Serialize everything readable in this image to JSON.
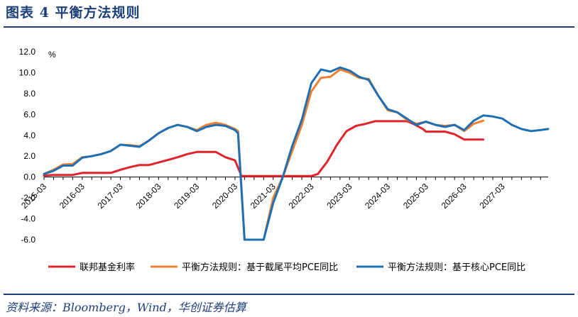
{
  "header": {
    "title": "图表 4 平衡方法规则"
  },
  "footer": {
    "source": "资料来源：Bloomberg，Wind，华创证券估算"
  },
  "chart_data": {
    "type": "line",
    "ylabel": "%",
    "ylim": [
      -6.0,
      12.0
    ],
    "yticks": [
      "12.0",
      "10.0",
      "8.0",
      "6.0",
      "4.0",
      "2.0",
      "0.0",
      "-2.0",
      "-4.0",
      "-6.0"
    ],
    "xlim": [
      2015.0,
      2028.2
    ],
    "xticks": [
      "2015-03",
      "2016-03",
      "2017-03",
      "2018-03",
      "2019-03",
      "2020-03",
      "2021-03",
      "2022-03",
      "2023-03",
      "2024-03",
      "2025-03",
      "2026-03",
      "2027-03"
    ],
    "colors": {
      "fed": "#e0242b",
      "trimmed": "#ee8030",
      "core": "#1f6fb5",
      "axis": "#000000"
    },
    "series": [
      {
        "name": "联邦基金利率",
        "color": "#e0242b",
        "points": [
          [
            2015.0,
            0.15
          ],
          [
            2015.25,
            0.2
          ],
          [
            2015.5,
            0.2
          ],
          [
            2015.75,
            0.2
          ],
          [
            2016.0,
            0.4
          ],
          [
            2016.25,
            0.4
          ],
          [
            2016.5,
            0.4
          ],
          [
            2016.75,
            0.4
          ],
          [
            2017.0,
            0.7
          ],
          [
            2017.25,
            0.95
          ],
          [
            2017.5,
            1.15
          ],
          [
            2017.75,
            1.15
          ],
          [
            2018.0,
            1.4
          ],
          [
            2018.25,
            1.65
          ],
          [
            2018.5,
            1.9
          ],
          [
            2018.75,
            2.2
          ],
          [
            2019.0,
            2.4
          ],
          [
            2019.25,
            2.4
          ],
          [
            2019.5,
            2.4
          ],
          [
            2019.75,
            1.9
          ],
          [
            2020.0,
            1.6
          ],
          [
            2020.17,
            0.1
          ],
          [
            2020.5,
            0.1
          ],
          [
            2021.0,
            0.1
          ],
          [
            2021.5,
            0.1
          ],
          [
            2022.0,
            0.1
          ],
          [
            2022.17,
            0.3
          ],
          [
            2022.42,
            1.5
          ],
          [
            2022.67,
            3.1
          ],
          [
            2022.92,
            4.4
          ],
          [
            2023.17,
            4.9
          ],
          [
            2023.42,
            5.1
          ],
          [
            2023.67,
            5.35
          ],
          [
            2024.0,
            5.35
          ],
          [
            2024.5,
            5.35
          ],
          [
            2024.67,
            5.1
          ],
          [
            2024.92,
            4.6
          ],
          [
            2025.0,
            4.35
          ],
          [
            2025.5,
            4.35
          ],
          [
            2025.75,
            4.1
          ],
          [
            2026.0,
            3.6
          ],
          [
            2026.5,
            3.6
          ]
        ]
      },
      {
        "name": "平衡方法规则：基于截尾平均PCE同比",
        "color": "#ee8030",
        "points": [
          [
            2015.0,
            0.3
          ],
          [
            2015.25,
            0.7
          ],
          [
            2015.5,
            1.2
          ],
          [
            2015.75,
            1.25
          ],
          [
            2016.0,
            1.9
          ],
          [
            2016.25,
            2.0
          ],
          [
            2016.5,
            2.2
          ],
          [
            2016.75,
            2.5
          ],
          [
            2017.0,
            3.1
          ],
          [
            2017.25,
            3.05
          ],
          [
            2017.5,
            2.95
          ],
          [
            2017.75,
            3.5
          ],
          [
            2018.0,
            4.2
          ],
          [
            2018.25,
            4.7
          ],
          [
            2018.5,
            5.0
          ],
          [
            2018.75,
            4.8
          ],
          [
            2019.0,
            4.5
          ],
          [
            2019.25,
            5.0
          ],
          [
            2019.5,
            5.2
          ],
          [
            2019.75,
            5.0
          ],
          [
            2020.0,
            4.6
          ],
          [
            2020.08,
            4.4
          ],
          [
            2020.25,
            -6.0
          ],
          [
            2020.75,
            -6.0
          ],
          [
            2021.0,
            -2.0
          ],
          [
            2021.25,
            0.0
          ],
          [
            2021.5,
            2.5
          ],
          [
            2021.75,
            5.0
          ],
          [
            2022.0,
            8.2
          ],
          [
            2022.25,
            9.5
          ],
          [
            2022.5,
            9.6
          ],
          [
            2022.75,
            10.3
          ],
          [
            2023.0,
            10.0
          ],
          [
            2023.25,
            9.5
          ],
          [
            2023.5,
            9.4
          ],
          [
            2023.75,
            7.8
          ],
          [
            2024.0,
            6.4
          ],
          [
            2024.25,
            6.2
          ],
          [
            2024.5,
            5.5
          ],
          [
            2024.75,
            5.1
          ],
          [
            2025.0,
            5.3
          ],
          [
            2025.25,
            5.0
          ],
          [
            2025.5,
            4.9
          ],
          [
            2025.75,
            5.0
          ],
          [
            2026.0,
            4.4
          ],
          [
            2026.25,
            5.1
          ],
          [
            2026.5,
            5.4
          ]
        ]
      },
      {
        "name": "平衡方法规则：基于核心PCE同比",
        "color": "#1f6fb5",
        "points": [
          [
            2015.0,
            0.3
          ],
          [
            2015.25,
            0.6
          ],
          [
            2015.5,
            1.1
          ],
          [
            2015.75,
            1.1
          ],
          [
            2016.0,
            1.85
          ],
          [
            2016.25,
            2.0
          ],
          [
            2016.5,
            2.2
          ],
          [
            2016.75,
            2.5
          ],
          [
            2017.0,
            3.1
          ],
          [
            2017.25,
            3.0
          ],
          [
            2017.5,
            2.9
          ],
          [
            2017.75,
            3.5
          ],
          [
            2018.0,
            4.2
          ],
          [
            2018.25,
            4.7
          ],
          [
            2018.5,
            5.0
          ],
          [
            2018.75,
            4.8
          ],
          [
            2019.0,
            4.4
          ],
          [
            2019.25,
            4.8
          ],
          [
            2019.5,
            5.0
          ],
          [
            2019.75,
            4.9
          ],
          [
            2020.0,
            4.5
          ],
          [
            2020.08,
            4.2
          ],
          [
            2020.25,
            -6.0
          ],
          [
            2020.75,
            -6.0
          ],
          [
            2021.0,
            -2.5
          ],
          [
            2021.25,
            0.0
          ],
          [
            2021.5,
            3.0
          ],
          [
            2021.75,
            5.5
          ],
          [
            2022.0,
            9.0
          ],
          [
            2022.25,
            10.3
          ],
          [
            2022.5,
            10.1
          ],
          [
            2022.75,
            10.5
          ],
          [
            2023.0,
            10.2
          ],
          [
            2023.25,
            9.6
          ],
          [
            2023.5,
            9.3
          ],
          [
            2023.75,
            7.8
          ],
          [
            2024.0,
            6.5
          ],
          [
            2024.25,
            6.2
          ],
          [
            2024.5,
            5.6
          ],
          [
            2024.75,
            5.0
          ],
          [
            2025.0,
            5.3
          ],
          [
            2025.25,
            5.0
          ],
          [
            2025.5,
            4.8
          ],
          [
            2025.75,
            5.0
          ],
          [
            2026.0,
            4.5
          ],
          [
            2026.25,
            5.4
          ],
          [
            2026.5,
            5.9
          ],
          [
            2026.75,
            5.8
          ],
          [
            2027.0,
            5.6
          ],
          [
            2027.25,
            5.0
          ],
          [
            2027.5,
            4.6
          ],
          [
            2027.75,
            4.4
          ],
          [
            2028.0,
            4.5
          ],
          [
            2028.2,
            4.6
          ]
        ]
      }
    ]
  }
}
